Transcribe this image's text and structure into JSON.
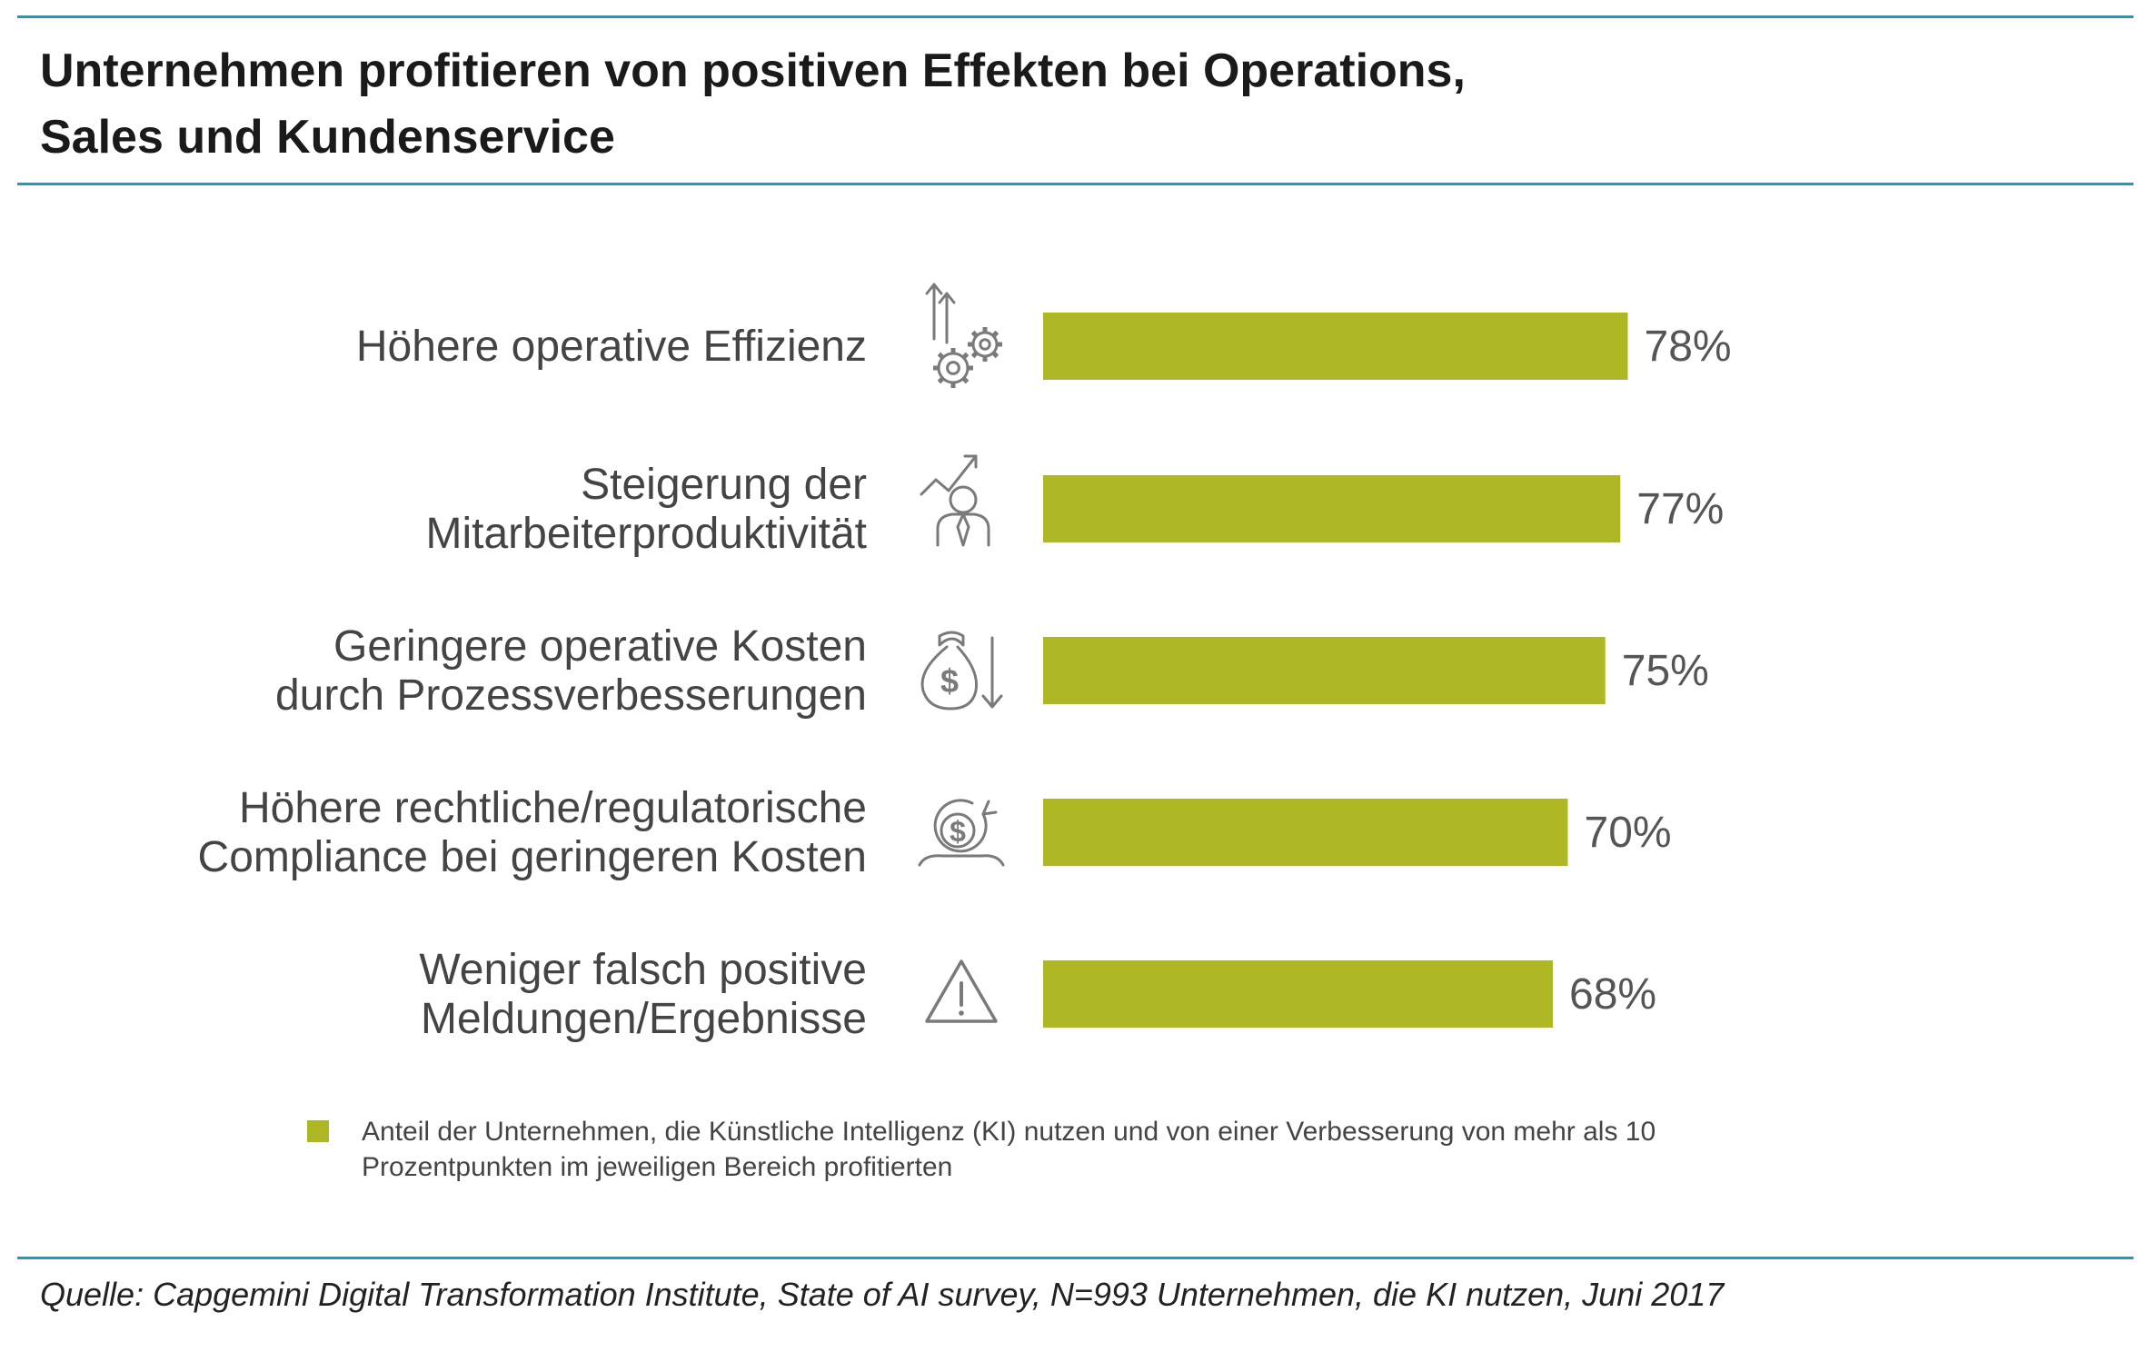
{
  "title": {
    "line1": "Unternehmen profitieren von positiven Effekten bei Operations,",
    "line2": "Sales und Kundenservice"
  },
  "chart_data": {
    "type": "bar",
    "orientation": "horizontal",
    "categories": [
      [
        "Höhere operative Effizienz"
      ],
      [
        "Steigerung der",
        "Mitarbeiterproduktivität"
      ],
      [
        "Geringere operative Kosten",
        "durch Prozessverbesserungen"
      ],
      [
        "Höhere rechtliche/regulatorische",
        "Compliance bei geringeren Kosten"
      ],
      [
        "Weniger falsch positive",
        "Meldungen/Ergebnisse"
      ]
    ],
    "icons": [
      "efficiency-gears-icon",
      "productivity-person-icon",
      "money-bag-down-icon",
      "coin-hand-icon",
      "warning-triangle-icon"
    ],
    "values": [
      78,
      77,
      75,
      70,
      68
    ],
    "value_labels": [
      "78%",
      "77%",
      "75%",
      "70%",
      "68%"
    ],
    "unit": "%",
    "color": "#adb824",
    "legend": [
      "Anteil der Unternehmen, die Künstliche Intelligenz (KI) nutzen und von einer Verbesserung von mehr als 10",
      "Prozentpunkten im jeweiligen Bereich profitierten"
    ],
    "legend_position": "bottom",
    "grid": false
  },
  "colors": {
    "accent": "#1c9ac4",
    "bar": "#adb824",
    "icon": "#7a7a7a"
  },
  "source": "Quelle: Capgemini Digital Transformation Institute, State of AI survey, N=993 Unternehmen, die KI nutzen, Juni 2017"
}
